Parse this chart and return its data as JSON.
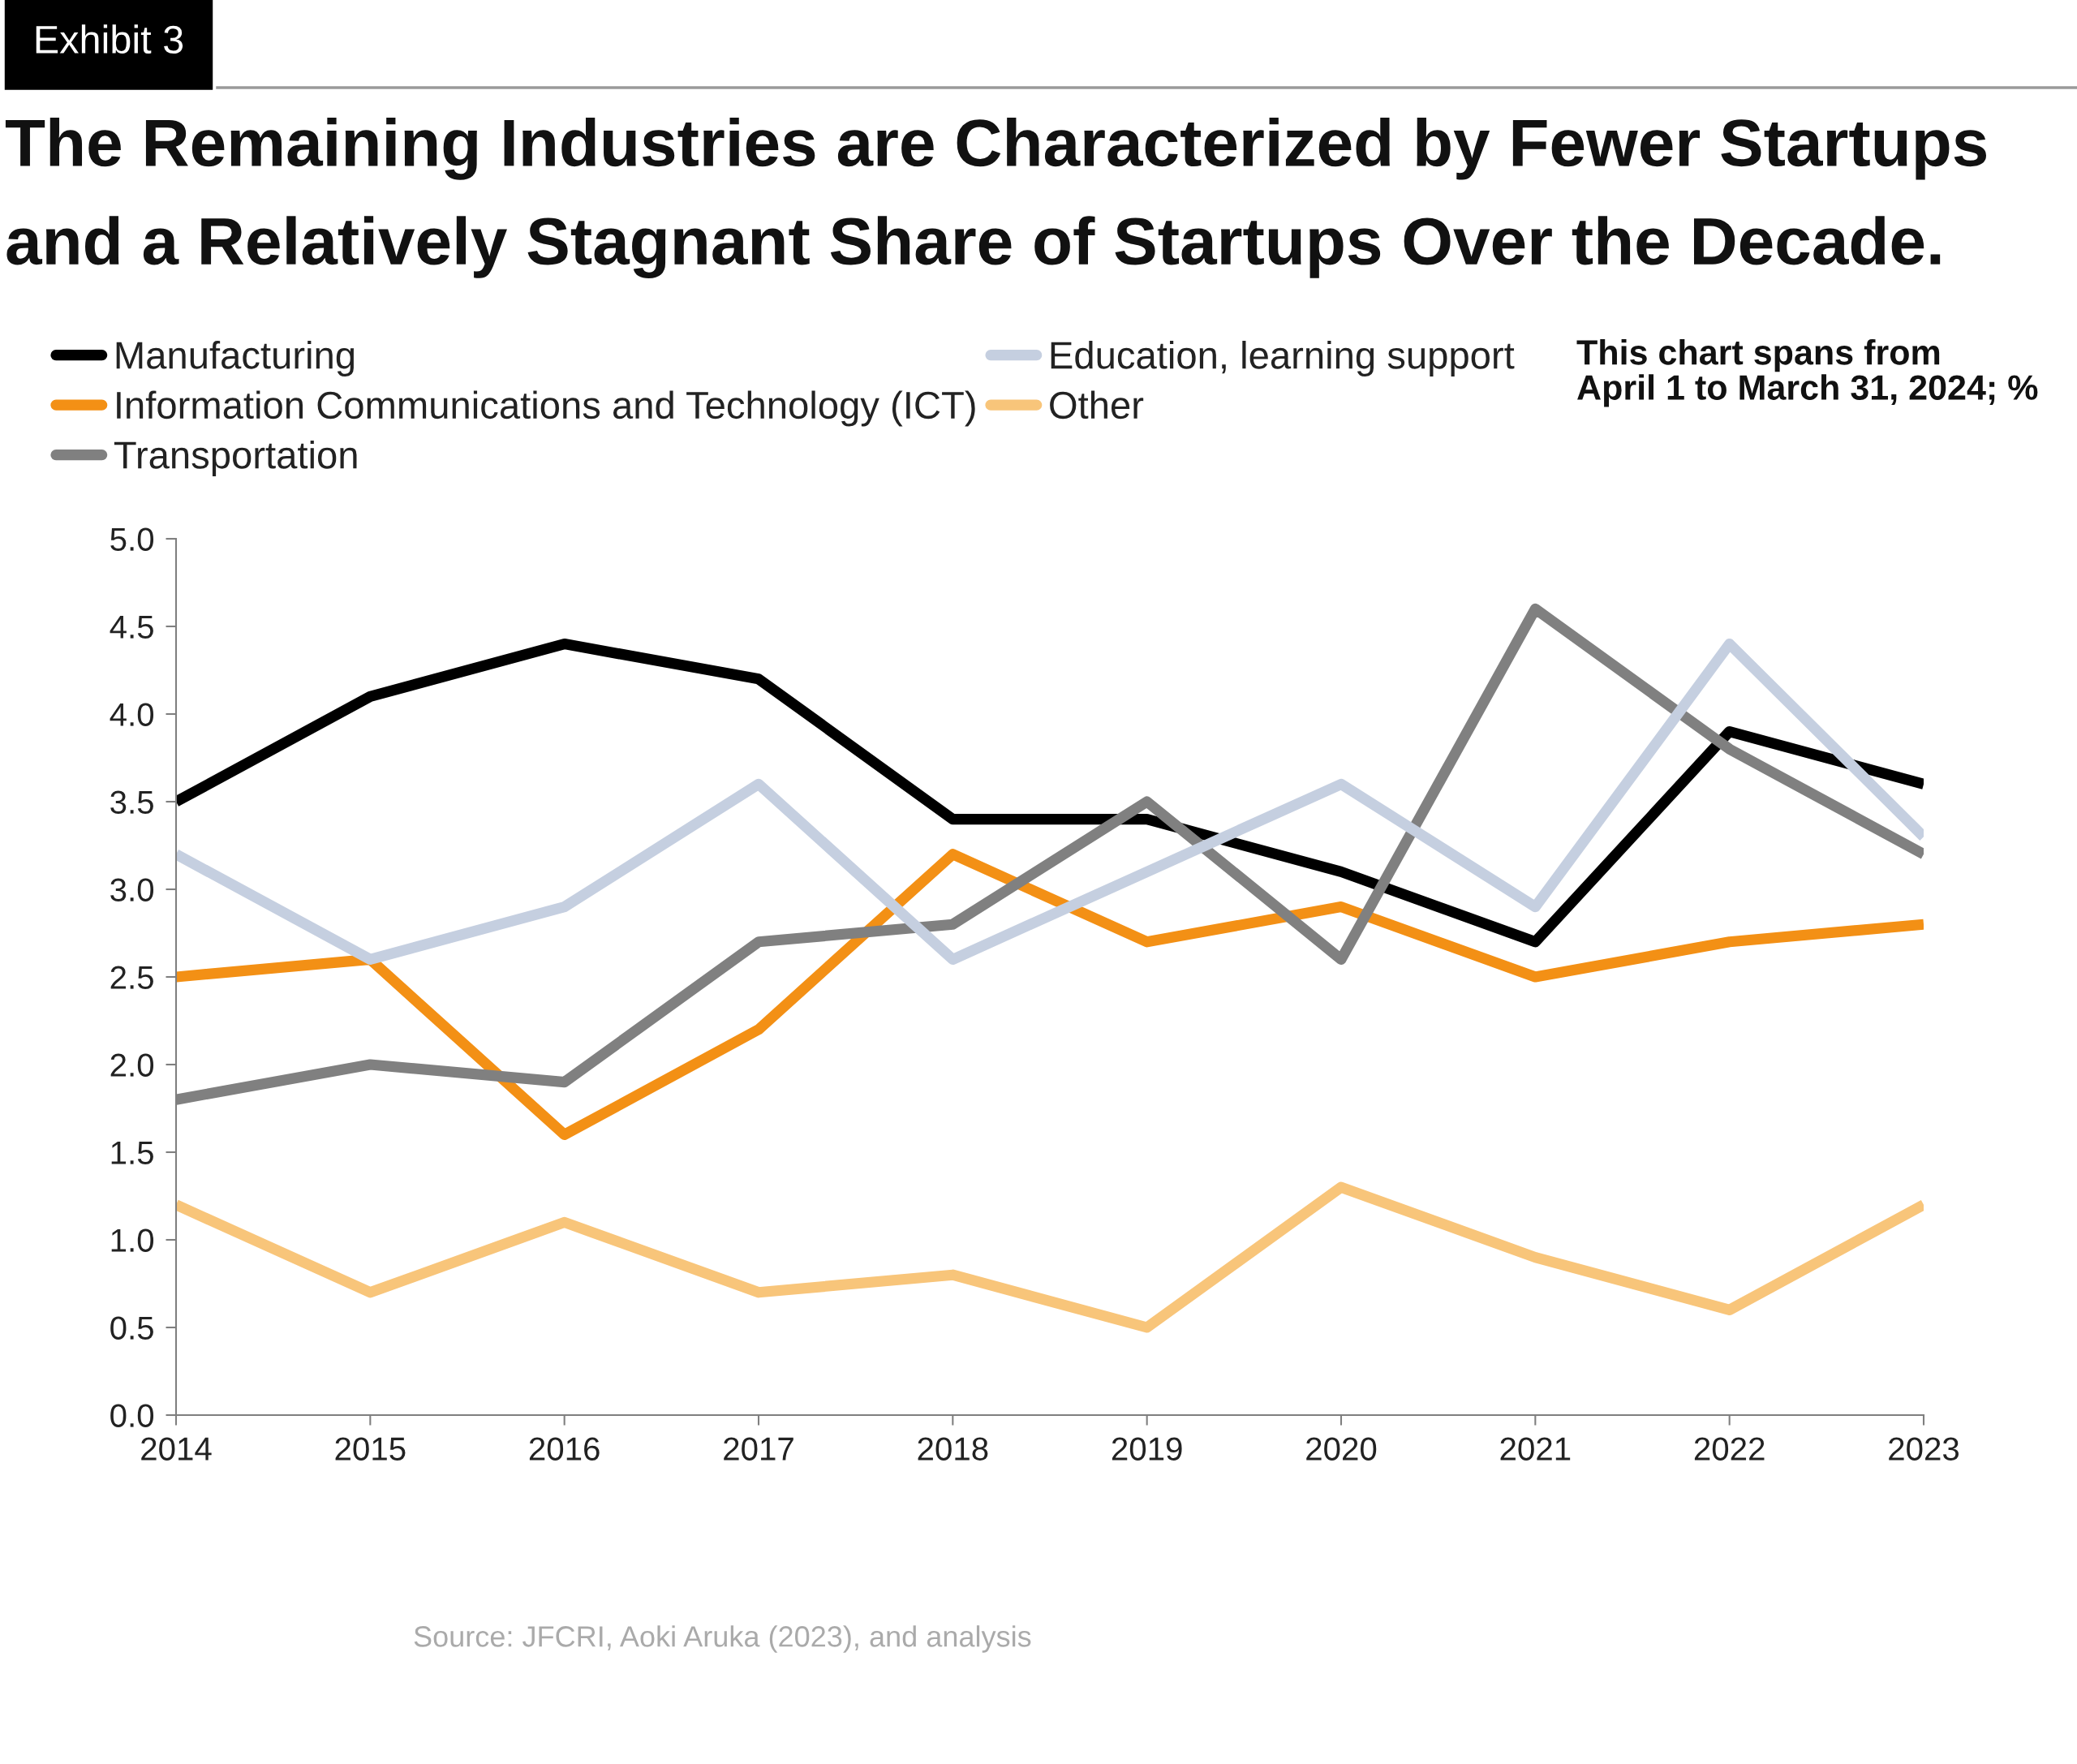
{
  "chart_data": {
    "type": "line",
    "title": "The Remaining Industries are Characterized by Fewer Startups and a Relatively Stagnant Share of Startups Over the Decade.",
    "subtitle": "This chart spans from\nApril 1 to March 31, 2024; %",
    "annotations": [
      "Exhibit 3",
      "Source: JFCRI, Aoki Aruka (2023), and analysis"
    ],
    "x": [
      2014,
      2015,
      2016,
      2017,
      2018,
      2019,
      2020,
      2021,
      2022,
      2023
    ],
    "series": [
      {
        "name": "Manufacturing",
        "color": "#000000",
        "values": [
          3.5,
          4.1,
          4.4,
          4.2,
          3.4,
          3.4,
          3.1,
          2.7,
          3.9,
          3.6
        ]
      },
      {
        "name": "Information Communications and Technology (ICT)",
        "color": "#f39015",
        "values": [
          2.5,
          2.6,
          1.6,
          2.2,
          3.2,
          2.7,
          2.9,
          2.5,
          2.7,
          2.8
        ]
      },
      {
        "name": "Transportation",
        "color": "#808080",
        "values": [
          1.8,
          2.0,
          1.9,
          2.7,
          2.8,
          3.5,
          2.6,
          4.6,
          3.8,
          3.2
        ]
      },
      {
        "name": "Education, learning support",
        "color": "#c5cfe0",
        "values": [
          3.2,
          2.6,
          2.9,
          3.6,
          2.6,
          3.1,
          3.6,
          2.9,
          4.4,
          3.3
        ]
      },
      {
        "name": "Other",
        "color": "#f8c57a",
        "values": [
          1.2,
          0.7,
          1.1,
          0.7,
          0.8,
          0.5,
          1.3,
          0.9,
          0.6,
          1.2
        ]
      }
    ],
    "xlim": [
      2014,
      2023
    ],
    "xticks": [
      2014,
      2015,
      2016,
      2017,
      2018,
      2019,
      2020,
      2021,
      2022,
      2023
    ],
    "ylim": [
      0,
      5
    ],
    "yticks": [
      {
        "value": 0,
        "label": "0.0"
      },
      {
        "value": 0.5,
        "label": "0.5"
      },
      {
        "value": 1,
        "label": "1.0"
      },
      {
        "value": 1.5,
        "label": "1.5"
      },
      {
        "value": 2,
        "label": "2.0"
      },
      {
        "value": 2.5,
        "label": "2.5"
      },
      {
        "value": 3,
        "label": "3.0"
      },
      {
        "value": 3.5,
        "label": "3.5"
      },
      {
        "value": 4,
        "label": "4.0"
      },
      {
        "value": 4.5,
        "label": "4.5"
      },
      {
        "value": 5,
        "label": "5.0"
      }
    ],
    "grid": false,
    "legend": "top left",
    "line_style": "solid"
  }
}
